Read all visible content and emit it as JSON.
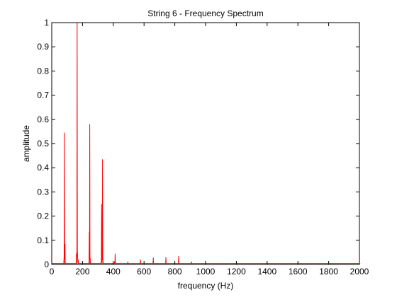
{
  "colors": {
    "background": "#ffffff",
    "axes": "#000000",
    "spectrum": "#ff0000"
  },
  "chart_data": {
    "type": "line",
    "title": "String 6 - Frequency Spectrum",
    "xlabel": "frequency (Hz)",
    "ylabel": "amplitude",
    "xlim": [
      0,
      2000
    ],
    "ylim": [
      0,
      1
    ],
    "xticks": [
      0,
      200,
      400,
      600,
      800,
      1000,
      1200,
      1400,
      1600,
      1800,
      2000
    ],
    "yticks": [
      0,
      0.1,
      0.2,
      0.3,
      0.4,
      0.5,
      0.6,
      0.7,
      0.8,
      0.9,
      1
    ],
    "ytick_labels": [
      "0",
      "0.1",
      "0.2",
      "0.3",
      "0.4",
      "0.5",
      "0.6",
      "0.7",
      "0.8",
      "0.9",
      "1"
    ],
    "grid": false,
    "legend": "none",
    "series": [
      {
        "peaks": [
          {
            "x": 82,
            "y": 0.545
          },
          {
            "x": 86,
            "y": 0.085
          },
          {
            "x": 160,
            "y": 0.045
          },
          {
            "x": 165,
            "y": 1.0
          },
          {
            "x": 172,
            "y": 0.02
          },
          {
            "x": 244,
            "y": 0.135
          },
          {
            "x": 247,
            "y": 0.58
          },
          {
            "x": 324,
            "y": 0.25
          },
          {
            "x": 330,
            "y": 0.435
          },
          {
            "x": 408,
            "y": 0.012
          },
          {
            "x": 412,
            "y": 0.045
          },
          {
            "x": 495,
            "y": 0.012
          },
          {
            "x": 577,
            "y": 0.02
          },
          {
            "x": 660,
            "y": 0.028
          },
          {
            "x": 742,
            "y": 0.03
          },
          {
            "x": 825,
            "y": 0.035
          },
          {
            "x": 908,
            "y": 0.012
          },
          {
            "x": 990,
            "y": 0.004
          }
        ],
        "baseline": 0.004
      }
    ]
  }
}
